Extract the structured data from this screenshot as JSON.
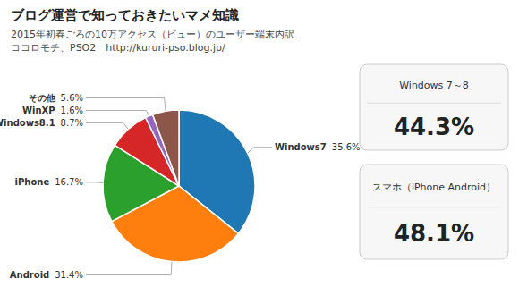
{
  "chart_data": {
    "type": "pie",
    "title": "ブログ運営で知っておきたいマメ知識",
    "subtitle": [
      "2015年初春ごろの10万アクセス（ビュー）のユーザー端末内訳",
      "ココロモチ、PSO2　http://kururi-pso.blog.jp/"
    ],
    "categories": [
      "Windows7",
      "Android",
      "iPhone",
      "Windows8.1",
      "WinXP",
      "その他"
    ],
    "values": [
      35.6,
      31.4,
      16.7,
      8.7,
      1.6,
      5.6
    ],
    "value_labels": [
      "35.6%",
      "31.4%",
      "16.7%",
      "8.7%",
      "1.6%",
      "5.6%"
    ],
    "data_labels": true,
    "annotations": [
      {
        "title": "Windows 7～8",
        "value": 44.3,
        "label": "44.3%"
      },
      {
        "title": "スマホ（iPhone Android）",
        "value": 48.1,
        "label": "48.1%"
      }
    ]
  }
}
